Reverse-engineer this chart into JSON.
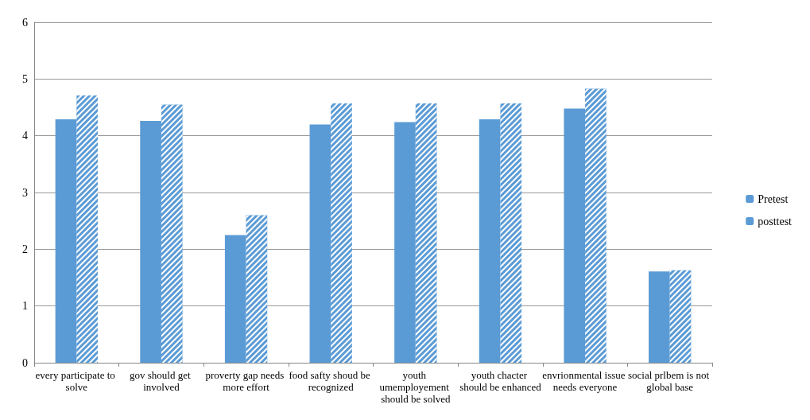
{
  "chart_data": {
    "type": "bar",
    "categories": [
      "every participate to solve",
      "gov should get involved",
      "proverty gap needs more effort",
      "food safty shoud be recognized",
      "youth umemployement should be solved",
      "youth chacter should be enhanced",
      "envrionmental issue needs everyone",
      "social prlbem is not global base"
    ],
    "series": [
      {
        "name": "Pretest",
        "color": "#5b9bd5",
        "values": [
          4.29,
          4.26,
          2.25,
          4.2,
          4.24,
          4.29,
          4.48,
          1.61
        ]
      },
      {
        "name": "posttest",
        "color": "#5b9bd5",
        "values": [
          4.71,
          4.55,
          2.6,
          4.57,
          4.57,
          4.57,
          4.83,
          1.63
        ]
      }
    ],
    "ylim": [
      0,
      6
    ],
    "yticks": [
      0,
      1,
      2,
      3,
      4,
      5,
      6
    ],
    "grid": "y",
    "legend": "right"
  }
}
